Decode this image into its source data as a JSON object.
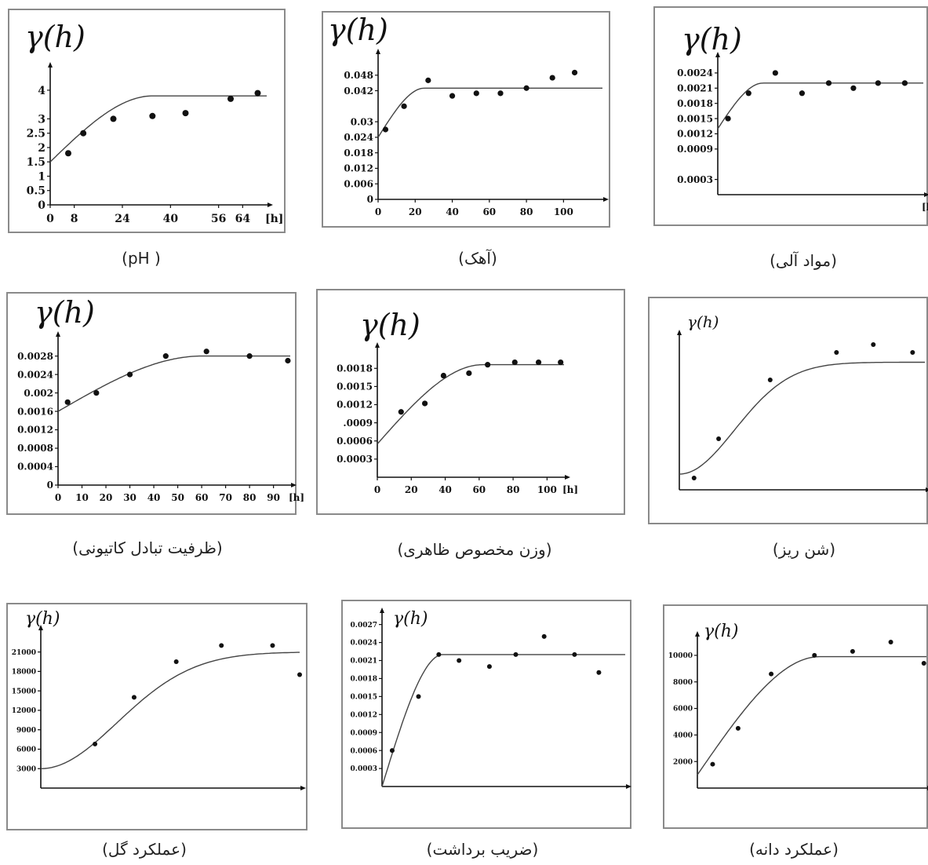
{
  "chart_data": [
    {
      "id": "ph",
      "type": "scatter",
      "title": "(pH )",
      "ylabel": "γ(h)",
      "xlabel": "[h]",
      "xlim": [
        0,
        72
      ],
      "ylim": [
        0,
        4.6
      ],
      "xticks": [
        {
          "v": 0,
          "t": "0"
        },
        {
          "v": 8,
          "t": "8"
        },
        {
          "v": 24,
          "t": "24"
        },
        {
          "v": 40,
          "t": "40"
        },
        {
          "v": 56,
          "t": "56"
        },
        {
          "v": 64,
          "t": "64"
        }
      ],
      "yticks": [
        {
          "v": 0,
          "t": "0"
        },
        {
          "v": 0.5,
          "t": "0.5"
        },
        {
          "v": 1,
          "t": "1"
        },
        {
          "v": 1.5,
          "t": "1.5"
        },
        {
          "v": 2,
          "t": "2"
        },
        {
          "v": 2.5,
          "t": "2.5"
        },
        {
          "v": 3,
          "t": "3"
        },
        {
          "v": 4,
          "t": "4"
        }
      ],
      "points": [
        [
          6,
          1.8
        ],
        [
          11,
          2.5
        ],
        [
          21,
          3.0
        ],
        [
          34,
          3.1
        ],
        [
          45,
          3.2
        ],
        [
          60,
          3.7
        ],
        [
          69,
          3.9
        ]
      ],
      "model": {
        "nugget": 1.5,
        "sill": 3.8,
        "range": 34
      },
      "grid": false,
      "legend": "none"
    },
    {
      "id": "ahak",
      "type": "scatter",
      "title": "(آهک)",
      "ylabel": "γ(h)",
      "xlabel": "",
      "xlim": [
        0,
        121
      ],
      "ylim": [
        0,
        0.054
      ],
      "xticks": [
        {
          "v": 0,
          "t": "0"
        },
        {
          "v": 20,
          "t": "20"
        },
        {
          "v": 40,
          "t": "40"
        },
        {
          "v": 60,
          "t": "60"
        },
        {
          "v": 80,
          "t": "80"
        },
        {
          "v": 100,
          "t": "100"
        }
      ],
      "yticks": [
        {
          "v": 0,
          "t": "0"
        },
        {
          "v": 0.006,
          "t": "0.006"
        },
        {
          "v": 0.012,
          "t": "0.012"
        },
        {
          "v": 0.018,
          "t": "0.018"
        },
        {
          "v": 0.024,
          "t": "0.024"
        },
        {
          "v": 0.03,
          "t": "0.03"
        },
        {
          "v": 0.042,
          "t": "0.042"
        },
        {
          "v": 0.048,
          "t": "0.048"
        }
      ],
      "points": [
        [
          4,
          0.027
        ],
        [
          14,
          0.036
        ],
        [
          27,
          0.046
        ],
        [
          40,
          0.04
        ],
        [
          53,
          0.041
        ],
        [
          66,
          0.041
        ],
        [
          80,
          0.043
        ],
        [
          94,
          0.047
        ],
        [
          106,
          0.049
        ]
      ],
      "model": {
        "nugget": 0.024,
        "sill": 0.043,
        "range": 25
      },
      "grid": false,
      "legend": "none"
    },
    {
      "id": "mavad",
      "type": "scatter",
      "title": "(مواد آلی)",
      "ylabel": "γ(h)",
      "xlabel": "[h]",
      "xlim": [
        0,
        100
      ],
      "ylim": [
        0,
        0.0026
      ],
      "xticks": [],
      "yticks": [
        {
          "v": 0.0003,
          "t": "0.0003"
        },
        {
          "v": 0.0009,
          "t": "0.0009"
        },
        {
          "v": 0.0012,
          "t": "0.0012"
        },
        {
          "v": 0.0015,
          "t": "0.0015"
        },
        {
          "v": 0.0018,
          "t": "0.0018"
        },
        {
          "v": 0.0021,
          "t": "0.0021"
        },
        {
          "v": 0.0024,
          "t": "0.0024"
        }
      ],
      "points": [
        [
          5,
          0.0015
        ],
        [
          15,
          0.002
        ],
        [
          28,
          0.0024
        ],
        [
          41,
          0.002
        ],
        [
          54,
          0.0022
        ],
        [
          66,
          0.0021
        ],
        [
          78,
          0.0022
        ],
        [
          91,
          0.0022
        ]
      ],
      "model": {
        "nugget": 0.0013,
        "sill": 0.0022,
        "range": 22
      },
      "grid": false,
      "legend": "none"
    },
    {
      "id": "cec",
      "type": "scatter",
      "title": "(ظرفیت تبادل کاتیونی)",
      "ylabel": "γ(h)",
      "xlabel": "[h]",
      "xlim": [
        0,
        97
      ],
      "ylim": [
        0,
        0.0031
      ],
      "xticks": [
        {
          "v": 0,
          "t": "0"
        },
        {
          "v": 10,
          "t": "10"
        },
        {
          "v": 20,
          "t": "20"
        },
        {
          "v": 30,
          "t": "30"
        },
        {
          "v": 40,
          "t": "40"
        },
        {
          "v": 50,
          "t": "50"
        },
        {
          "v": 60,
          "t": "60"
        },
        {
          "v": 70,
          "t": "70"
        },
        {
          "v": 80,
          "t": "80"
        },
        {
          "v": 90,
          "t": "90"
        }
      ],
      "yticks": [
        {
          "v": 0,
          "t": "0"
        },
        {
          "v": 0.0004,
          "t": "0.0004"
        },
        {
          "v": 0.0008,
          "t": "0.0008"
        },
        {
          "v": 0.0012,
          "t": "0.0012"
        },
        {
          "v": 0.0016,
          "t": "0.0016"
        },
        {
          "v": 0.002,
          "t": "0.002"
        },
        {
          "v": 0.0024,
          "t": "0.0024"
        },
        {
          "v": 0.0028,
          "t": "0.0028"
        }
      ],
      "points": [
        [
          4,
          0.0018
        ],
        [
          16,
          0.002
        ],
        [
          30,
          0.0024
        ],
        [
          45,
          0.0028
        ],
        [
          62,
          0.0029
        ],
        [
          80,
          0.0028
        ],
        [
          96,
          0.0027
        ]
      ],
      "model": {
        "nugget": 0.0016,
        "sill": 0.0028,
        "range": 60
      },
      "grid": false,
      "legend": "none"
    },
    {
      "id": "vazn",
      "type": "scatter",
      "title": "(وزن مخصوص ظاهری)",
      "ylabel": "γ(h)",
      "xlabel": "[h]",
      "xlim": [
        0,
        110
      ],
      "ylim": [
        0,
        0.00205
      ],
      "xticks": [
        {
          "v": 0,
          "t": "0"
        },
        {
          "v": 20,
          "t": "20"
        },
        {
          "v": 40,
          "t": "40"
        },
        {
          "v": 60,
          "t": "60"
        },
        {
          "v": 80,
          "t": "80"
        },
        {
          "v": 100,
          "t": "100"
        }
      ],
      "yticks": [
        {
          "v": 0.0003,
          "t": "0.0003"
        },
        {
          "v": 0.0006,
          "t": "0.0006"
        },
        {
          "v": 0.0009,
          "t": ".0009"
        },
        {
          "v": 0.0012,
          "t": "0.0012"
        },
        {
          "v": 0.0015,
          "t": "0.0015"
        },
        {
          "v": 0.0018,
          "t": "0.0018"
        }
      ],
      "points": [
        [
          14,
          0.00108
        ],
        [
          28,
          0.00122
        ],
        [
          39,
          0.00168
        ],
        [
          54,
          0.00172
        ],
        [
          65,
          0.00186
        ],
        [
          81,
          0.0019
        ],
        [
          95,
          0.0019
        ],
        [
          108,
          0.0019
        ]
      ],
      "model": {
        "nugget": 0.00055,
        "sill": 0.00186,
        "range": 62
      },
      "grid": false,
      "legend": "none"
    },
    {
      "id": "shen",
      "type": "scatter",
      "title": "(شن ریز)",
      "ylabel": "γ(h)",
      "xlabel": "",
      "xlim": [
        0,
        100
      ],
      "ylim": [
        0,
        0.76
      ],
      "xticks": [],
      "yticks": [],
      "points": [
        [
          6,
          0.06
        ],
        [
          16,
          0.26
        ],
        [
          37,
          0.56
        ],
        [
          64,
          0.7
        ],
        [
          79,
          0.74
        ],
        [
          95,
          0.7
        ]
      ],
      "model": {
        "nugget": 0.08,
        "sill": 0.65,
        "range": 55,
        "shape": "gaussian"
      },
      "grid": false,
      "legend": "none"
    },
    {
      "id": "gol",
      "type": "scatter",
      "title": "(عملکرد گل)",
      "ylabel": "γ(h)",
      "xlabel": "",
      "xlim": [
        0,
        86
      ],
      "ylim": [
        0,
        23500
      ],
      "xticks": [],
      "yticks": [
        {
          "v": 3000,
          "t": "3000"
        },
        {
          "v": 6000,
          "t": "6000"
        },
        {
          "v": 9000,
          "t": "9000"
        },
        {
          "v": 12000,
          "t": "12000"
        },
        {
          "v": 15000,
          "t": "15000"
        },
        {
          "v": 18000,
          "t": "18000"
        },
        {
          "v": 21000,
          "t": "21000"
        }
      ],
      "points": [
        [
          18,
          6800
        ],
        [
          31,
          14000
        ],
        [
          45,
          19500
        ],
        [
          60,
          22000
        ],
        [
          77,
          22000
        ],
        [
          86,
          17500
        ]
      ],
      "model": {
        "nugget": 3000,
        "sill": 21000,
        "range": 62,
        "shape": "gaussian"
      },
      "grid": false,
      "legend": "none"
    },
    {
      "id": "zarib",
      "type": "scatter",
      "title": "(ضریب برداشت)",
      "ylabel": "γ(h)",
      "xlabel": "",
      "xlim": [
        0,
        120
      ],
      "ylim": [
        0,
        0.0028
      ],
      "xticks": [],
      "yticks": [
        {
          "v": 0.0003,
          "t": "0.0003"
        },
        {
          "v": 0.0006,
          "t": "0.0006"
        },
        {
          "v": 0.0009,
          "t": "0.0009"
        },
        {
          "v": 0.0012,
          "t": "0.0012"
        },
        {
          "v": 0.0015,
          "t": "0.0015"
        },
        {
          "v": 0.0018,
          "t": "0.0018"
        },
        {
          "v": 0.0021,
          "t": "0.0021"
        },
        {
          "v": 0.0024,
          "t": "0.0024"
        },
        {
          "v": 0.0027,
          "t": "0.0027"
        }
      ],
      "points": [
        [
          5,
          0.0006
        ],
        [
          18,
          0.0015
        ],
        [
          28,
          0.0022
        ],
        [
          38,
          0.0021
        ],
        [
          53,
          0.002
        ],
        [
          66,
          0.0022
        ],
        [
          80,
          0.0025
        ],
        [
          95,
          0.0022
        ],
        [
          107,
          0.0019
        ]
      ],
      "model": {
        "nugget": 0.0,
        "sill": 0.0022,
        "range": 30
      },
      "grid": false,
      "legend": "none"
    },
    {
      "id": "daneh",
      "type": "scatter",
      "title": "(عملکرد دانه)",
      "ylabel": "γ(h)",
      "xlabel": "",
      "xlim": [
        0,
        90
      ],
      "ylim": [
        0,
        11000
      ],
      "xticks": [],
      "yticks": [
        {
          "v": 2000,
          "t": "2000"
        },
        {
          "v": 4000,
          "t": "4000"
        },
        {
          "v": 6000,
          "t": "6000"
        },
        {
          "v": 8000,
          "t": "8000"
        },
        {
          "v": 10000,
          "t": "10000"
        }
      ],
      "points": [
        [
          6,
          1800
        ],
        [
          16,
          4500
        ],
        [
          29,
          8600
        ],
        [
          46,
          10000
        ],
        [
          61,
          10300
        ],
        [
          76,
          11000
        ],
        [
          89,
          9400
        ]
      ],
      "model": {
        "nugget": 1000,
        "sill": 9900,
        "range": 48
      },
      "grid": false,
      "legend": "none"
    }
  ]
}
